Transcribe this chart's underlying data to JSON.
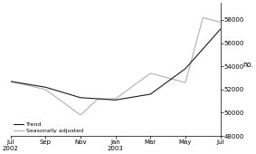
{
  "ylabel": "no.",
  "ylim": [
    48000,
    59500
  ],
  "yticks": [
    48000,
    50000,
    52000,
    54000,
    56000,
    58000
  ],
  "x_labels": [
    "Jul\n2002",
    "Sep",
    "Nov",
    "Jan\n2003",
    "Mar",
    "May",
    "Jul"
  ],
  "x_positions": [
    0,
    2,
    4,
    6,
    8,
    10,
    12
  ],
  "trend_x": [
    0,
    2,
    4,
    6,
    8,
    10,
    12
  ],
  "trend_y": [
    52700,
    52200,
    51300,
    51100,
    51600,
    53800,
    57200
  ],
  "seas_adj_x": [
    0,
    2,
    4,
    5,
    6,
    8,
    10,
    11,
    12
  ],
  "seas_adj_y": [
    52700,
    52000,
    49800,
    51200,
    51200,
    53400,
    52600,
    58200,
    57800
  ],
  "trend_color": "#1a1a1a",
  "seas_adj_color": "#b0b0b0",
  "trend_label": "Trend",
  "seas_adj_label": "Seasonally adjusted",
  "background_color": "#ffffff",
  "trend_linewidth": 0.8,
  "seas_adj_linewidth": 0.8
}
